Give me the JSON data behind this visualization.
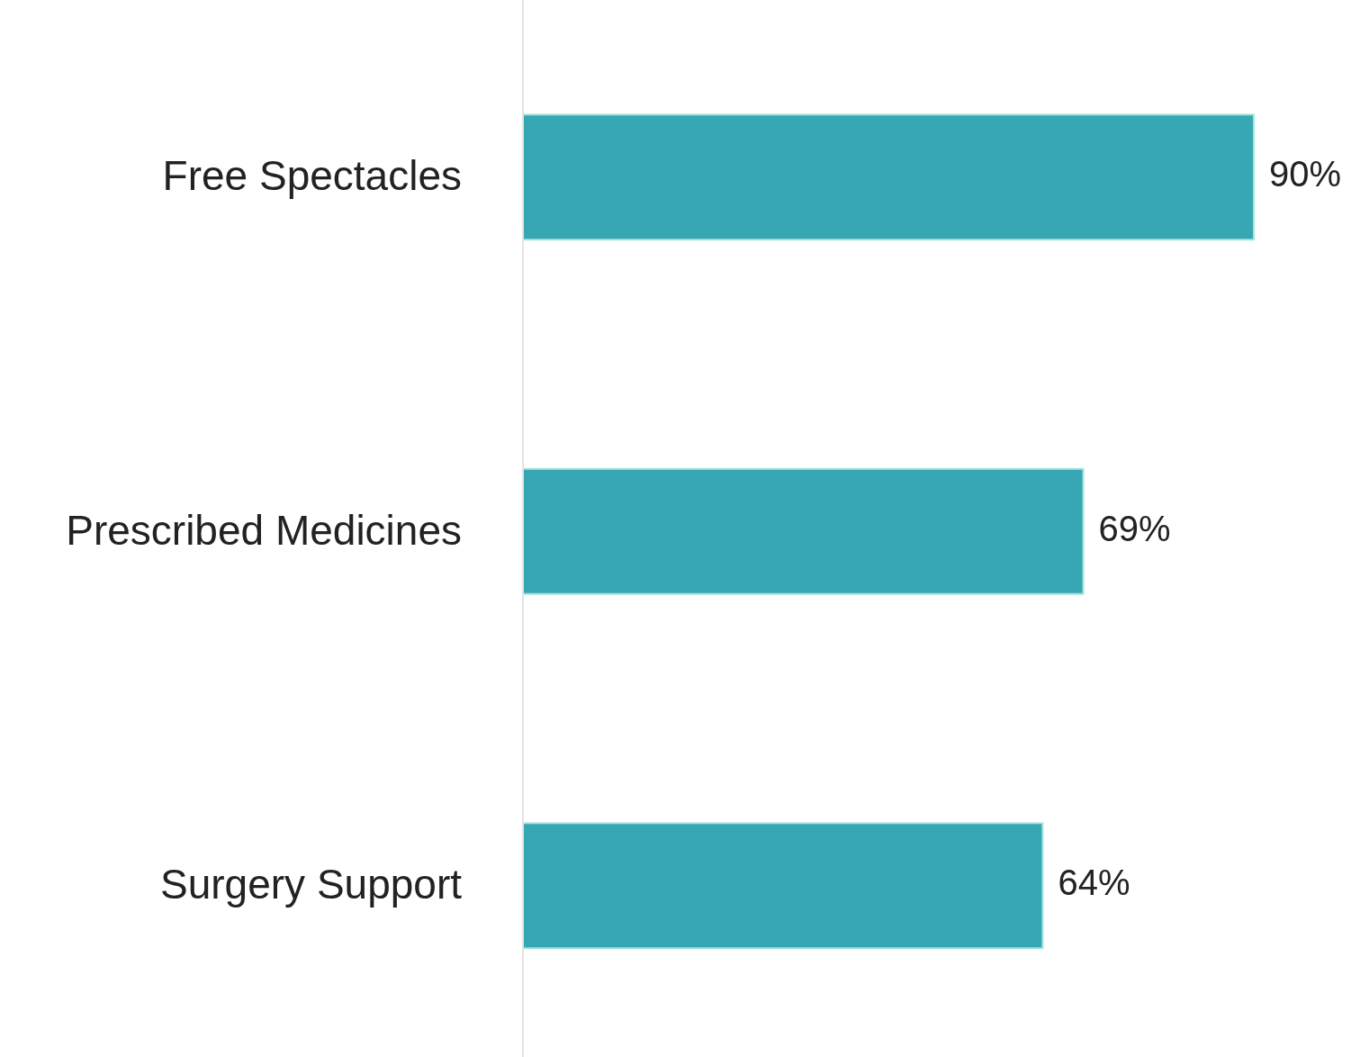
{
  "chart_data": {
    "type": "bar",
    "orientation": "horizontal",
    "categories": [
      "Free Spectacles",
      "Prescribed Medicines",
      "Surgery Support"
    ],
    "values": [
      90,
      69,
      64
    ],
    "value_labels": [
      "90%",
      "69%",
      "64%"
    ],
    "color": "#38a7b4"
  }
}
